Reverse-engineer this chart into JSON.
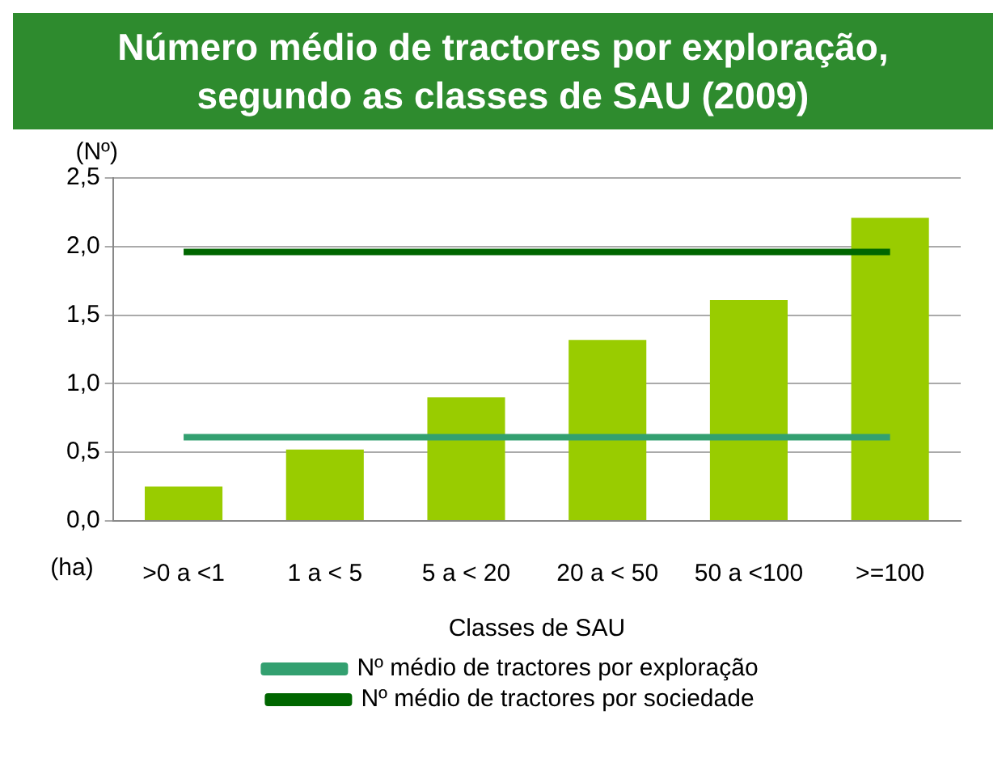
{
  "chart_data": {
    "type": "bar",
    "title": "Número médio de tractores por exploração, segundo as classes de SAU (2009)",
    "ylabel": "(Nº)",
    "xlabel": "Classes de SAU",
    "annotations": [
      "(ha)"
    ],
    "categories": [
      ">0 a <1",
      "1 a < 5",
      "5 a < 20",
      "20 a < 50",
      "50 a <100",
      ">=100"
    ],
    "series": [
      {
        "color": "#99cc00",
        "values": [
          0.25,
          0.52,
          0.9,
          1.32,
          1.61,
          2.21
        ]
      },
      {
        "type": "line",
        "name": "Nº médio de tractores por exploração",
        "color": "#33a070",
        "values": [
          0.61,
          0.61,
          0.61,
          0.61,
          0.61,
          0.61
        ]
      },
      {
        "type": "line",
        "name": "Nº médio de tractores por sociedade",
        "color": "#006600",
        "values": [
          1.96,
          1.96,
          1.96,
          1.96,
          1.96,
          1.96
        ]
      }
    ],
    "ylim": [
      0,
      2.5
    ],
    "yticks": [
      {
        "value": 0,
        "label": "0,0"
      },
      {
        "value": 0.5,
        "label": "0,5"
      },
      {
        "value": 1,
        "label": "1,0"
      },
      {
        "value": 1.5,
        "label": "1,5"
      },
      {
        "value": 2,
        "label": "2,0"
      },
      {
        "value": 2.5,
        "label": "2,5"
      }
    ],
    "grid": "y",
    "legend": "bottom",
    "marker": "none"
  }
}
